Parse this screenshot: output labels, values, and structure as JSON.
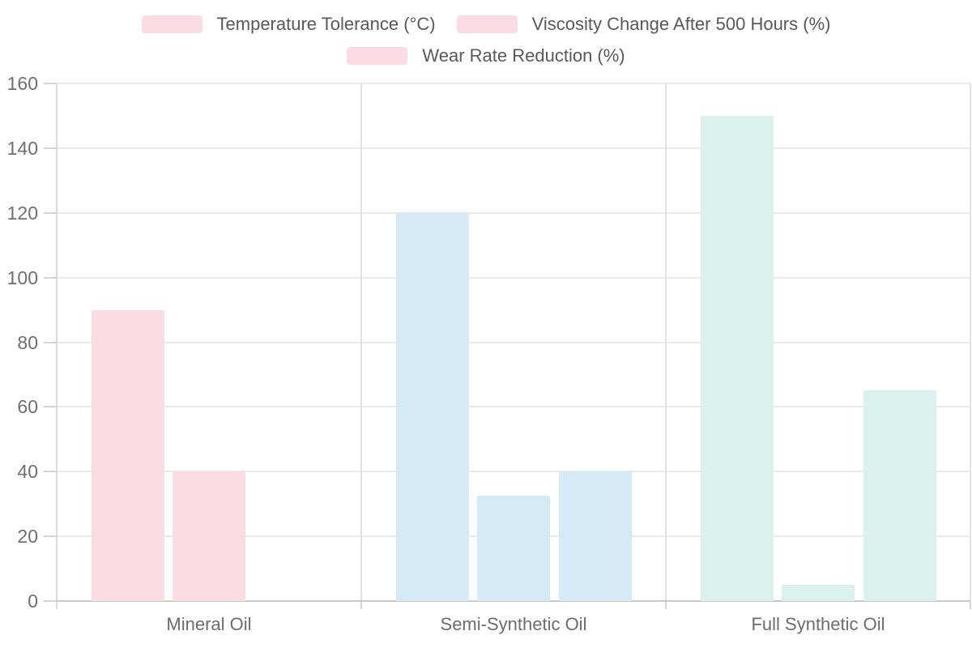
{
  "chart_data": {
    "type": "bar",
    "title": "",
    "categories": [
      "Mineral Oil",
      "Semi-Synthetic Oil",
      "Full Synthetic Oil"
    ],
    "series": [
      {
        "name": "Temperature Tolerance (°C)",
        "values": [
          90,
          120,
          150
        ]
      },
      {
        "name": "Viscosity Change After 500 Hours (%)",
        "values": [
          40,
          32.5,
          5
        ]
      },
      {
        "name": "Wear Rate Reduction (%)",
        "values": [
          0,
          40,
          65
        ]
      }
    ],
    "group_colors": [
      "#fbdce3",
      "#d6e9f7",
      "#daf1ee"
    ],
    "legend_swatch_color": "#fcdce4",
    "xlabel": "",
    "ylabel": "",
    "ylim": [
      0,
      160
    ],
    "ytick_step": 20,
    "yticks": [
      0,
      20,
      40,
      60,
      80,
      100,
      120,
      140,
      160
    ],
    "grid": true,
    "legend_position": "top"
  }
}
